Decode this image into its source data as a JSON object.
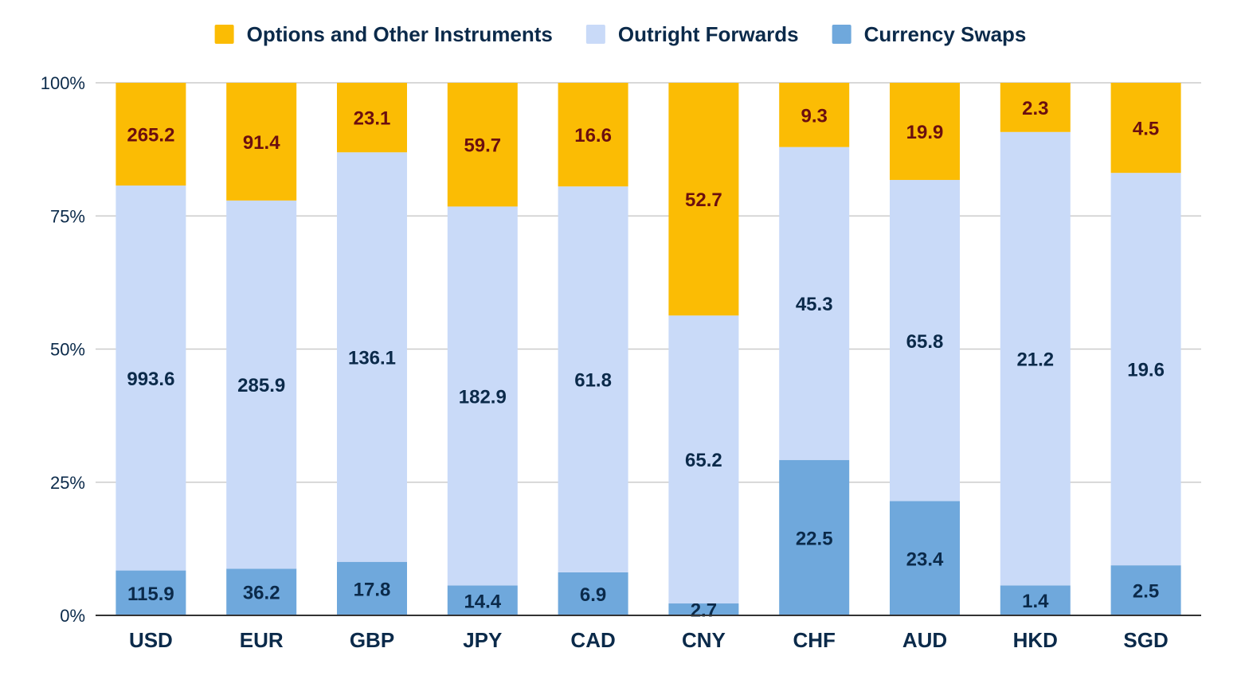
{
  "chart_data": {
    "type": "bar",
    "stacking": "percent",
    "categories": [
      "USD",
      "EUR",
      "GBP",
      "JPY",
      "CAD",
      "CNY",
      "CHF",
      "AUD",
      "HKD",
      "SGD"
    ],
    "series": [
      {
        "name": "Currency Swaps",
        "color": "#6fa8dc",
        "label_color": "#0b2a4a",
        "values": [
          115.9,
          36.2,
          17.8,
          14.4,
          6.9,
          2.7,
          22.5,
          23.4,
          1.4,
          2.5
        ]
      },
      {
        "name": "Outright Forwards",
        "color": "#c9daf8",
        "label_color": "#0b2a4a",
        "values": [
          993.6,
          285.9,
          136.1,
          182.9,
          61.8,
          65.2,
          45.3,
          65.8,
          21.2,
          19.6
        ]
      },
      {
        "name": "Options and Other Instruments",
        "color": "#fbbc04",
        "label_color": "#6b0f0f",
        "values": [
          265.2,
          91.4,
          23.1,
          59.7,
          16.6,
          52.7,
          9.3,
          19.9,
          2.3,
          4.5
        ]
      }
    ],
    "legend_order": [
      "Options and Other Instruments",
      "Outright Forwards",
      "Currency Swaps"
    ],
    "legend_position": "top",
    "y_ticks": [
      "0%",
      "25%",
      "50%",
      "75%",
      "100%"
    ],
    "ylim": [
      0,
      100
    ],
    "grid": true,
    "title": "",
    "xlabel": "",
    "ylabel": ""
  }
}
